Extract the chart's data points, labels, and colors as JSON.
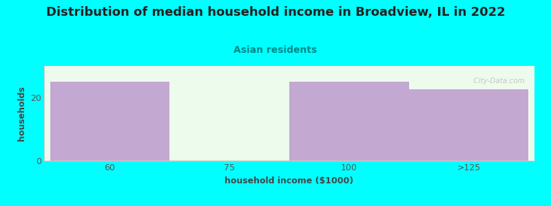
{
  "title": "Distribution of median household income in Broadview, IL in 2022",
  "subtitle": "Asian residents",
  "xlabel": "household income ($1000)",
  "ylabel": "households",
  "background_color": "#00FFFF",
  "plot_bg_top": "#E8F5EE",
  "plot_bg_bottom": "#F8FFF8",
  "bar_labels": [
    "60",
    "75",
    "100",
    ">125"
  ],
  "bar_values": [
    25,
    0.3,
    25,
    22.5
  ],
  "bar_colors": [
    "#C3A8D1",
    "#D8EDD8",
    "#C3A8D1",
    "#C3A8D1"
  ],
  "bar_edges": [
    0,
    1,
    2,
    3,
    4
  ],
  "ylim": [
    0,
    30
  ],
  "yticks": [
    0,
    20
  ],
  "xlim": [
    -0.05,
    4.05
  ],
  "title_fontsize": 13,
  "subtitle_fontsize": 10,
  "axis_label_fontsize": 9,
  "tick_fontsize": 9,
  "title_color": "#222222",
  "subtitle_color": "#008888",
  "tick_color": "#555555",
  "label_color": "#444444",
  "watermark": "  City-Data.com",
  "spine_color": "#CCCCCC"
}
